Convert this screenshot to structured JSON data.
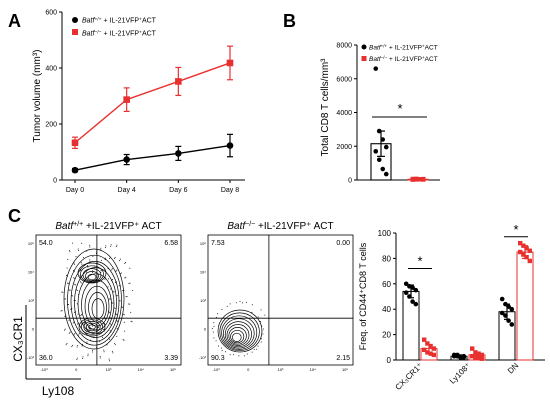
{
  "panels": {
    "a": "A",
    "b": "B",
    "c": "C"
  },
  "colors": {
    "wt": "#000000",
    "ko": "#e8312f",
    "line_ko": "#e8312f",
    "contour": "#000000"
  },
  "chart_data": [
    {
      "type": "line",
      "panel": "A",
      "ylabel": "Tumor volume (mm³)",
      "xlabel": "",
      "categories": [
        "Day 0",
        "Day 4",
        "Day 6",
        "Day 8"
      ],
      "ylim": [
        0,
        600
      ],
      "yticks": [
        0,
        200,
        400,
        600
      ],
      "legend": [
        {
          "prefix": "Batf",
          "sup": "+/+",
          "suffix": " + IL-21VFP",
          "sup2": "+",
          "suffix2": "ACT"
        },
        {
          "prefix": "Batf",
          "sup": "−/−",
          "suffix": " + IL-21VFP",
          "sup2": "+",
          "suffix2": "ACT"
        }
      ],
      "series": [
        {
          "values": [
            35,
            73,
            95,
            123
          ],
          "err": [
            6,
            18,
            25,
            40
          ],
          "marker": "circle",
          "color": "#000000"
        },
        {
          "values": [
            133,
            287,
            352,
            418
          ],
          "err": [
            20,
            42,
            50,
            60
          ],
          "marker": "square",
          "color": "#e8312f"
        }
      ]
    },
    {
      "type": "bar",
      "panel": "B",
      "ylabel": "Total CD8 T cells/mm³",
      "ylim": [
        0,
        8000
      ],
      "yticks": [
        0,
        2000,
        4000,
        6000,
        8000
      ],
      "significance": "*",
      "legend": [
        {
          "prefix": "Batf",
          "sup": "+/+",
          "suffix": " + IL-21VFP",
          "sup2": "+",
          "suffix2": "ACT"
        },
        {
          "prefix": "Batf",
          "sup": "−/−",
          "suffix": " + IL-21VFP",
          "sup2": "+",
          "suffix2": "ACT"
        }
      ],
      "series": [
        {
          "mean": 2150,
          "err": 750,
          "points": [
            6600,
            2900,
            2400,
            1950,
            1700,
            1200,
            650,
            350
          ],
          "color": "#000000"
        },
        {
          "mean": 45,
          "err": 20,
          "points": [
            20,
            35,
            45,
            55,
            60,
            70,
            40,
            30
          ],
          "color": "#e8312f"
        }
      ]
    },
    {
      "type": "scatter",
      "panel": "C-flow",
      "xlabel": "Ly108",
      "ylabel": "CX₃CR1",
      "axis_ticks": [
        "10⁵",
        "10⁴",
        "10³",
        "0",
        "-10³"
      ],
      "plots": [
        {
          "title_gene": "Batf",
          "title_sup": "+/+",
          "title_rest": " +IL-21VFP⁺ ACT",
          "quadrants": {
            "ul": "54.0",
            "ur": "6.58",
            "ll": "36.0",
            "lr": "3.39"
          }
        },
        {
          "title_gene": "Batf",
          "title_sup": "−/−",
          "title_rest": " +IL-21VFP⁺ ACT",
          "quadrants": {
            "ul": "7.53",
            "ur": "0.00",
            "ll": "90.3",
            "lr": "2.15"
          }
        }
      ]
    },
    {
      "type": "bar",
      "panel": "C",
      "ylabel": "Freq. of CD44⁺CD8 T cells",
      "categories": [
        "CX₃CR1⁺",
        "Ly108⁺",
        "DN"
      ],
      "ylim": [
        0,
        100
      ],
      "yticks": [
        0,
        20,
        40,
        60,
        80,
        100
      ],
      "significance": [
        "*",
        "",
        "*"
      ],
      "series": [
        {
          "means": [
            54,
            3,
            38
          ],
          "errs": [
            5,
            1,
            6
          ],
          "points": [
            [
              60,
              58,
              57,
              55,
              53,
              50,
              46,
              44
            ],
            [
              4,
              3,
              2,
              2,
              3,
              4,
              2,
              3
            ],
            [
              48,
              44,
              42,
              40,
              37,
              35,
              31,
              28
            ]
          ],
          "color": "#000000"
        },
        {
          "means": [
            9,
            4,
            85
          ],
          "errs": [
            3,
            2,
            5
          ],
          "points": [
            [
              16,
              13,
              11,
              9,
              8,
              6,
              5,
              4
            ],
            [
              9,
              6,
              5,
              4,
              3,
              2,
              2,
              1
            ],
            [
              92,
              90,
              88,
              86,
              85,
              83,
              81,
              78
            ]
          ],
          "color": "#e8312f"
        }
      ]
    }
  ]
}
